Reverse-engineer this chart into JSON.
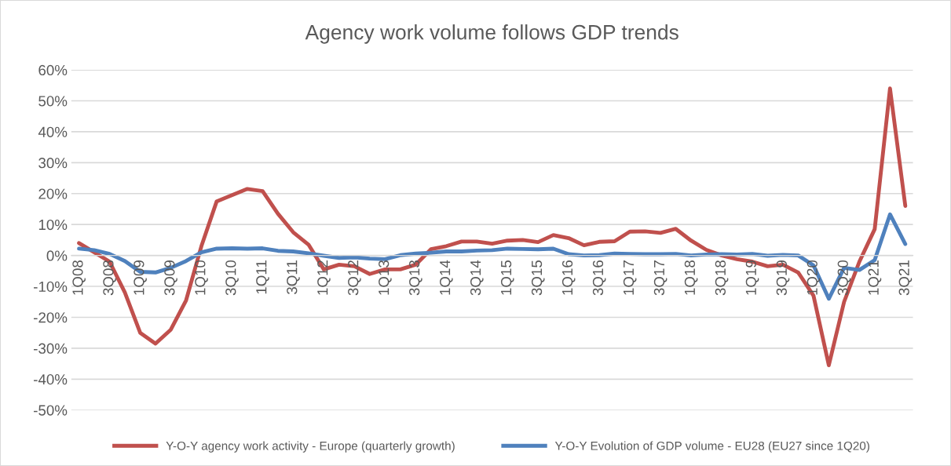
{
  "chart_data": {
    "type": "line",
    "title": "Agency work volume follows GDP trends",
    "categories": [
      "1Q08",
      null,
      "3Q08",
      null,
      "1Q09",
      null,
      "3Q09",
      null,
      "1Q10",
      null,
      "3Q10",
      null,
      "1Q11",
      null,
      "3Q11",
      null,
      "1Q12",
      null,
      "3Q12",
      null,
      "1Q13",
      null,
      "3Q13",
      null,
      "1Q14",
      null,
      "3Q14",
      null,
      "1Q15",
      null,
      "3Q15",
      null,
      "1Q16",
      null,
      "3Q16",
      null,
      "1Q17",
      null,
      "3Q17",
      null,
      "1Q18",
      null,
      "3Q18",
      null,
      "1Q19",
      null,
      "3Q19",
      null,
      "1Q20",
      null,
      "3Q20",
      null,
      "1Q21",
      null,
      "3Q21"
    ],
    "series": [
      {
        "name": "Y-O-Y agency work activity - Europe (quarterly growth)",
        "color": "#c0504d",
        "values": [
          4,
          1,
          -2,
          -12,
          -25,
          -28.5,
          -24,
          -14.5,
          3,
          17.5,
          19.5,
          21.5,
          20.8,
          13.5,
          7.5,
          3.5,
          -4.5,
          -3,
          -3.5,
          -6,
          -4.5,
          -4.5,
          -3,
          2,
          3,
          4.5,
          4.5,
          3.8,
          4.8,
          5,
          4.3,
          6.6,
          5.6,
          3.3,
          4.4,
          4.6,
          7.7,
          7.8,
          7.3,
          8.6,
          4.8,
          1.8,
          0,
          -1.2,
          -2,
          -3.5,
          -3,
          -5.5,
          -13,
          -35.5,
          -15,
          -2,
          8.5,
          54,
          16
        ]
      },
      {
        "name": "Y-O-Y Evolution of GDP volume - EU28 (EU27 since 1Q20)",
        "color": "#4f81bd",
        "values": [
          2.2,
          1.7,
          0.5,
          -1.8,
          -5.3,
          -5.5,
          -4,
          -1.8,
          1,
          2.2,
          2.3,
          2.2,
          2.3,
          1.5,
          1.3,
          0.7,
          -0.1,
          -0.8,
          -0.6,
          -1,
          -1.2,
          0.1,
          0.6,
          0.9,
          1.3,
          1.3,
          1.6,
          1.7,
          2.2,
          2.1,
          2,
          2.2,
          0.4,
          0,
          0.1,
          0.6,
          0.5,
          0.4,
          0.4,
          0.5,
          0,
          0.3,
          0.4,
          0.3,
          0.5,
          -0.1,
          0.2,
          0,
          -3.2,
          -14,
          -4,
          -4.7,
          -1.5,
          13.3,
          3.7
        ]
      }
    ],
    "ylim": [
      -50,
      60
    ],
    "yticks": [
      {
        "value": -50,
        "label": "-50%"
      },
      {
        "value": -40,
        "label": "-40%"
      },
      {
        "value": -30,
        "label": "-30%"
      },
      {
        "value": -20,
        "label": "-20%"
      },
      {
        "value": -10,
        "label": "-10%"
      },
      {
        "value": 0,
        "label": "0%"
      },
      {
        "value": 10,
        "label": "10%"
      },
      {
        "value": 20,
        "label": "20%"
      },
      {
        "value": 30,
        "label": "30%"
      },
      {
        "value": 40,
        "label": "40%"
      },
      {
        "value": 50,
        "label": "50%"
      },
      {
        "value": 60,
        "label": "60%"
      }
    ],
    "grid": "y",
    "legend": "bottom",
    "marker": "none",
    "line_style": "solid"
  }
}
